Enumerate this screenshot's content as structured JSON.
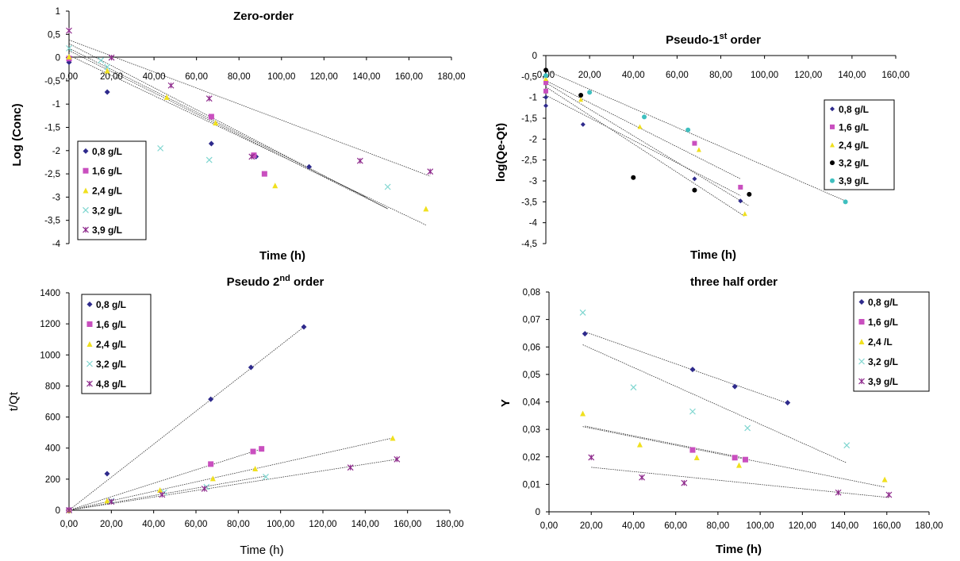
{
  "chart_data": [
    {
      "type": "scatter",
      "title": "Zero-order",
      "title_sup": "",
      "title_suffix": "",
      "xlabel": "Time (h)",
      "ylabel": "Log (Conc)",
      "xlim": [
        0,
        180
      ],
      "ylim": [
        -4,
        1
      ],
      "xticks": [
        "0,00",
        "20,00",
        "40,00",
        "60,00",
        "80,00",
        "100,00",
        "120,00",
        "140,00",
        "160,00",
        "180,00"
      ],
      "yticks": [
        "1",
        "0,5",
        "0",
        "-0,5",
        "-1",
        "-1,5",
        "-2",
        "-2,5",
        "-3",
        "-3,5",
        "-4"
      ],
      "series": [
        {
          "name": "0,8 g/L",
          "color": "#2e2a8c",
          "marker": "diamond",
          "points": [
            [
              0,
              -0.1
            ],
            [
              18,
              -0.74
            ],
            [
              67,
              -1.85
            ],
            [
              88,
              -2.13
            ],
            [
              113,
              -2.35
            ]
          ],
          "fit": [
            [
              0,
              0.15
            ],
            [
              150,
              -3.25
            ]
          ]
        },
        {
          "name": "1,6 g/L",
          "color": "#c94fbf",
          "marker": "square",
          "points": [
            [
              0,
              -0.02
            ],
            [
              67,
              -1.27
            ],
            [
              87,
              -2.1
            ],
            [
              92,
              -2.5
            ]
          ],
          "fit": [
            [
              0,
              0.2
            ],
            [
              140,
              -3.0
            ]
          ]
        },
        {
          "name": "2,4 g/L",
          "color": "#f0e01e",
          "marker": "triangle",
          "points": [
            [
              0,
              0.02
            ],
            [
              18,
              -0.28
            ],
            [
              46,
              -0.85
            ],
            [
              69,
              -1.4
            ],
            [
              97,
              -2.75
            ],
            [
              168,
              -3.25
            ]
          ],
          "fit": [
            [
              0,
              0.05
            ],
            [
              168,
              -3.6
            ]
          ]
        },
        {
          "name": "3,2 g/L",
          "color": "#7fd6d0",
          "marker": "x",
          "points": [
            [
              0,
              0.2
            ],
            [
              15,
              -0.06
            ],
            [
              18,
              -0.2
            ],
            [
              43,
              -1.95
            ],
            [
              66,
              -2.2
            ],
            [
              150,
              -2.78
            ]
          ],
          "fit": [
            [
              0,
              0.3
            ],
            [
              150,
              -3.25
            ]
          ]
        },
        {
          "name": "3,9 g/L",
          "color": "#8e2a8c",
          "marker": "star",
          "points": [
            [
              0,
              0.58
            ],
            [
              20,
              0.0
            ],
            [
              48,
              -0.6
            ],
            [
              66,
              -0.88
            ],
            [
              86,
              -2.13
            ],
            [
              137,
              -2.22
            ],
            [
              170,
              -2.45
            ]
          ],
          "fit": [
            [
              0,
              0.38
            ],
            [
              170,
              -2.55
            ]
          ]
        }
      ],
      "legend": "bottom-left"
    },
    {
      "type": "scatter",
      "title": "Pseudo-1",
      "title_sup": "st",
      "title_suffix": " order",
      "xlabel": "Time (h)",
      "ylabel": "log(Qe-Qt)",
      "xlim": [
        0,
        160
      ],
      "ylim": [
        -4.5,
        0
      ],
      "xticks": [
        "0,00",
        "20,00",
        "40,00",
        "60,00",
        "80,00",
        "100,00",
        "120,00",
        "140,00",
        "160,00"
      ],
      "yticks": [
        "0",
        "-0,5",
        "-1",
        "-1,5",
        "-2",
        "-2,5",
        "-3",
        "-3,5",
        "-4",
        "-4,5"
      ],
      "series": [
        {
          "name": "0,8 g/L",
          "color": "#2e2a8c",
          "marker": "diamond",
          "points": [
            [
              0,
              -1.0
            ],
            [
              0,
              -1.2
            ],
            [
              17,
              -1.65
            ],
            [
              68,
              -2.95
            ],
            [
              89,
              -3.48
            ]
          ],
          "fit": [
            [
              0,
              -0.95
            ],
            [
              89,
              -3.35
            ]
          ]
        },
        {
          "name": "1,6 g/L",
          "color": "#c94fbf",
          "marker": "square",
          "points": [
            [
              0,
              -0.65
            ],
            [
              0,
              -0.85
            ],
            [
              68,
              -2.1
            ],
            [
              89,
              -3.15
            ]
          ],
          "fit": [
            [
              0,
              -0.6
            ],
            [
              89,
              -2.95
            ]
          ]
        },
        {
          "name": "2,4 g/L",
          "color": "#f0e01e",
          "marker": "triangle",
          "points": [
            [
              0,
              -0.55
            ],
            [
              16,
              -1.05
            ],
            [
              43,
              -1.7
            ],
            [
              70,
              -2.25
            ],
            [
              91,
              -3.78
            ]
          ],
          "fit": [
            [
              0,
              -0.75
            ],
            [
              91,
              -3.85
            ]
          ]
        },
        {
          "name": "3,2 g/L",
          "color": "#000000",
          "marker": "circle",
          "points": [
            [
              0,
              -0.35
            ],
            [
              16,
              -0.95
            ],
            [
              40,
              -2.92
            ],
            [
              68,
              -3.22
            ],
            [
              93,
              -3.32
            ]
          ],
          "fit": [
            [
              0,
              -0.65
            ],
            [
              93,
              -3.6
            ]
          ]
        },
        {
          "name": "3,9 g/L",
          "color": "#3fbfbf",
          "marker": "circle",
          "points": [
            [
              0,
              -0.48
            ],
            [
              20,
              -0.88
            ],
            [
              45,
              -1.47
            ],
            [
              65,
              -1.78
            ],
            [
              137,
              -3.5
            ]
          ],
          "fit": [
            [
              0,
              -0.35
            ],
            [
              137,
              -3.48
            ]
          ]
        }
      ],
      "legend": "right"
    },
    {
      "type": "scatter",
      "title": "Pseudo 2",
      "title_sup": "nd",
      "title_suffix": " order",
      "xlabel": "Time (h)",
      "ylabel": "t/Qt",
      "xlim": [
        0,
        180
      ],
      "ylim": [
        0,
        1400
      ],
      "xticks": [
        "0,00",
        "20,00",
        "40,00",
        "60,00",
        "80,00",
        "100,00",
        "120,00",
        "140,00",
        "160,00",
        "180,00"
      ],
      "yticks": [
        "1400",
        "1200",
        "1000",
        "800",
        "600",
        "400",
        "200",
        "0"
      ],
      "series": [
        {
          "name": "0,8 g/L",
          "color": "#2e2a8c",
          "marker": "diamond",
          "points": [
            [
              0,
              0
            ],
            [
              18,
              235
            ],
            [
              67,
              715
            ],
            [
              86,
              920
            ],
            [
              111,
              1180
            ]
          ],
          "fit": [
            [
              0,
              0
            ],
            [
              111,
              1180
            ]
          ]
        },
        {
          "name": "1,6 g/L",
          "color": "#c94fbf",
          "marker": "square",
          "points": [
            [
              0,
              0
            ],
            [
              67,
              297
            ],
            [
              87,
              378
            ],
            [
              91,
              395
            ]
          ],
          "fit": [
            [
              0,
              0
            ],
            [
              91,
              395
            ]
          ]
        },
        {
          "name": "2,4 g/L",
          "color": "#f0e01e",
          "marker": "triangle",
          "points": [
            [
              0,
              0
            ],
            [
              18,
              62
            ],
            [
              43,
              130
            ],
            [
              68,
              205
            ],
            [
              88,
              268
            ],
            [
              153,
              465
            ]
          ],
          "fit": [
            [
              0,
              0
            ],
            [
              153,
              465
            ]
          ]
        },
        {
          "name": "3,2 g/L",
          "color": "#7fd6d0",
          "marker": "x",
          "points": [
            [
              0,
              0
            ],
            [
              20,
              60
            ],
            [
              45,
              115
            ],
            [
              65,
              150
            ],
            [
              93,
              215
            ]
          ],
          "fit": [
            [
              0,
              0
            ],
            [
              93,
              220
            ]
          ]
        },
        {
          "name": "4,8 g/L",
          "color": "#8e2a8c",
          "marker": "star",
          "points": [
            [
              0,
              0
            ],
            [
              20,
              55
            ],
            [
              44,
              100
            ],
            [
              64,
              138
            ],
            [
              133,
              275
            ],
            [
              155,
              328
            ]
          ],
          "fit": [
            [
              0,
              0
            ],
            [
              155,
              328
            ]
          ]
        }
      ],
      "legend": "top-left"
    },
    {
      "type": "scatter",
      "title": "three half order",
      "title_sup": "",
      "title_suffix": "",
      "xlabel": "Time (h)",
      "ylabel": "Y",
      "xlim": [
        0,
        180
      ],
      "ylim": [
        0,
        0.08
      ],
      "xticks": [
        "0,00",
        "20,00",
        "40,00",
        "60,00",
        "80,00",
        "100,00",
        "120,00",
        "140,00",
        "160,00",
        "180,00"
      ],
      "yticks": [
        "0,08",
        "0,07",
        "0,06",
        "0,05",
        "0,04",
        "0,03",
        "0,02",
        "0,01",
        "0"
      ],
      "series": [
        {
          "name": "0,8 g/L",
          "color": "#2e2a8c",
          "marker": "diamond",
          "points": [
            [
              17,
              0.0648
            ],
            [
              68,
              0.0518
            ],
            [
              88,
              0.0456
            ],
            [
              113,
              0.0397
            ]
          ],
          "fit": [
            [
              17,
              0.0655
            ],
            [
              113,
              0.0395
            ]
          ]
        },
        {
          "name": "1,6 g/L",
          "color": "#c94fbf",
          "marker": "square",
          "points": [
            [
              68,
              0.0225
            ],
            [
              88,
              0.0197
            ],
            [
              93,
              0.019
            ]
          ],
          "fit": [
            [
              17,
              0.0312
            ],
            [
              93,
              0.0195
            ]
          ]
        },
        {
          "name": "2,4 /L",
          "color": "#f0e01e",
          "marker": "triangle",
          "points": [
            [
              16,
              0.0358
            ],
            [
              43,
              0.0245
            ],
            [
              70,
              0.0198
            ],
            [
              90,
              0.017
            ],
            [
              159,
              0.0118
            ]
          ],
          "fit": [
            [
              16,
              0.031
            ],
            [
              159,
              0.009
            ]
          ]
        },
        {
          "name": "3,2 g/L",
          "color": "#7fd6d0",
          "marker": "x",
          "points": [
            [
              16,
              0.0725
            ],
            [
              40,
              0.0453
            ],
            [
              68,
              0.0365
            ],
            [
              94,
              0.0305
            ],
            [
              141,
              0.0242
            ]
          ],
          "fit": [
            [
              16,
              0.0608
            ],
            [
              141,
              0.0178
            ]
          ]
        },
        {
          "name": "3,9 g/L",
          "color": "#8e2a8c",
          "marker": "star",
          "points": [
            [
              20,
              0.0198
            ],
            [
              44,
              0.0125
            ],
            [
              64,
              0.0105
            ],
            [
              137,
              0.007
            ],
            [
              161,
              0.0062
            ]
          ],
          "fit": [
            [
              20,
              0.0162
            ],
            [
              161,
              0.0052
            ]
          ]
        }
      ],
      "legend": "top-right"
    }
  ]
}
